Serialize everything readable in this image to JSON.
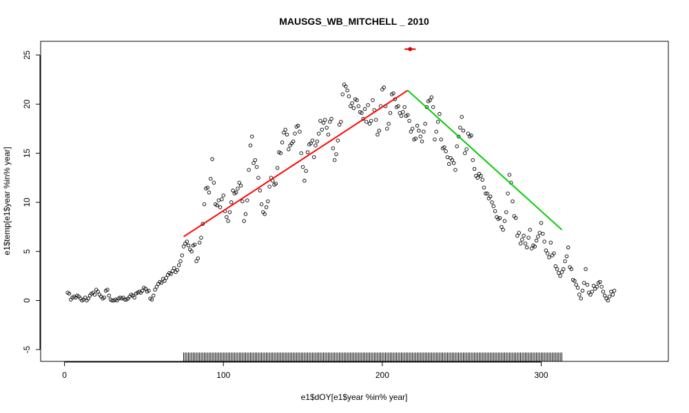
{
  "chart_data": {
    "type": "scatter",
    "title": "MAUSGS_WB_MITCHELL _ 2010",
    "xlabel": "e1$dOY[e1$year %in% year]",
    "ylabel": "e1$temp[e1$year %in% year]",
    "xlim": [
      -15,
      380
    ],
    "ylim": [
      -6.2,
      26.4
    ],
    "x_ticks": [
      0,
      100,
      200,
      300
    ],
    "y_ticks": [
      -5,
      0,
      5,
      10,
      15,
      20,
      25
    ],
    "grid": false,
    "legend": "none",
    "scatter_color": "#000000",
    "scatter_points": [
      [
        2,
        0.8
      ],
      [
        3,
        0.7
      ],
      [
        4,
        0.1
      ],
      [
        5,
        0.3
      ],
      [
        6,
        0.4
      ],
      [
        7,
        0.3
      ],
      [
        8,
        0.5
      ],
      [
        9,
        0.4
      ],
      [
        10,
        0.2
      ],
      [
        11,
        0.0
      ],
      [
        12,
        0.1
      ],
      [
        13,
        0.3
      ],
      [
        14,
        0.0
      ],
      [
        15,
        0.2
      ],
      [
        16,
        0.5
      ],
      [
        17,
        0.7
      ],
      [
        18,
        0.8
      ],
      [
        19,
        0.6
      ],
      [
        20,
        1.1
      ],
      [
        21,
        0.9
      ],
      [
        22,
        0.6
      ],
      [
        23,
        0.4
      ],
      [
        24,
        0.2
      ],
      [
        25,
        0.3
      ],
      [
        26,
        1.0
      ],
      [
        27,
        1.1
      ],
      [
        28,
        0.5
      ],
      [
        29,
        0.1
      ],
      [
        30,
        0.0
      ],
      [
        31,
        0.0
      ],
      [
        32,
        0.1
      ],
      [
        33,
        0.0
      ],
      [
        34,
        0.2
      ],
      [
        35,
        0.3
      ],
      [
        36,
        0.2
      ],
      [
        37,
        0.3
      ],
      [
        38,
        0.1
      ],
      [
        39,
        0.1
      ],
      [
        40,
        0.2
      ],
      [
        41,
        0.4
      ],
      [
        42,
        0.6
      ],
      [
        43,
        0.5
      ],
      [
        44,
        0.3
      ],
      [
        45,
        0.7
      ],
      [
        46,
        0.8
      ],
      [
        47,
        0.9
      ],
      [
        48,
        0.8
      ],
      [
        49,
        1.0
      ],
      [
        50,
        1.3
      ],
      [
        51,
        1.2
      ],
      [
        52,
        0.9
      ],
      [
        53,
        1.0
      ],
      [
        54,
        0.2
      ],
      [
        55,
        0.1
      ],
      [
        56,
        0.5
      ],
      [
        57,
        1.1
      ],
      [
        58,
        1.4
      ],
      [
        59,
        1.7
      ],
      [
        60,
        1.9
      ],
      [
        61,
        1.8
      ],
      [
        62,
        2.2
      ],
      [
        63,
        2.0
      ],
      [
        64,
        2.3
      ],
      [
        65,
        2.6
      ],
      [
        66,
        2.8
      ],
      [
        67,
        2.7
      ],
      [
        68,
        3.0
      ],
      [
        69,
        3.3
      ],
      [
        70,
        2.9
      ],
      [
        71,
        3.1
      ],
      [
        72,
        3.6
      ],
      [
        73,
        4.0
      ],
      [
        74,
        4.6
      ],
      [
        75,
        5.5
      ],
      [
        76,
        5.8
      ],
      [
        77,
        6.0
      ],
      [
        78,
        5.6
      ],
      [
        79,
        5.2
      ],
      [
        80,
        5.0
      ],
      [
        81,
        5.6
      ],
      [
        82,
        5.7
      ],
      [
        83,
        4.0
      ],
      [
        84,
        4.3
      ],
      [
        85,
        5.9
      ],
      [
        86,
        6.4
      ],
      [
        87,
        7.8
      ],
      [
        88,
        9.8
      ],
      [
        89,
        11.4
      ],
      [
        90,
        11.5
      ],
      [
        91,
        11.0
      ],
      [
        92,
        12.4
      ],
      [
        93,
        14.4
      ],
      [
        94,
        12.0
      ],
      [
        95,
        9.8
      ],
      [
        96,
        9.7
      ],
      [
        97,
        10.2
      ],
      [
        98,
        9.5
      ],
      [
        99,
        10.3
      ],
      [
        100,
        10.7
      ],
      [
        101,
        9.1
      ],
      [
        102,
        8.5
      ],
      [
        103,
        8.1
      ],
      [
        104,
        9.0
      ],
      [
        105,
        10.0
      ],
      [
        106,
        11.2
      ],
      [
        107,
        10.9
      ],
      [
        108,
        11.0
      ],
      [
        109,
        11.4
      ],
      [
        110,
        12.0
      ],
      [
        111,
        11.7
      ],
      [
        112,
        10.1
      ],
      [
        113,
        8.1
      ],
      [
        114,
        8.8
      ],
      [
        115,
        10.2
      ],
      [
        116,
        13.3
      ],
      [
        117,
        15.8
      ],
      [
        118,
        16.7
      ],
      [
        119,
        14.0
      ],
      [
        120,
        14.3
      ],
      [
        121,
        13.6
      ],
      [
        122,
        12.5
      ],
      [
        123,
        11.2
      ],
      [
        124,
        9.8
      ],
      [
        125,
        9.0
      ],
      [
        126,
        8.8
      ],
      [
        127,
        9.5
      ],
      [
        128,
        10.1
      ],
      [
        129,
        11.6
      ],
      [
        130,
        12.5
      ],
      [
        131,
        12.2
      ],
      [
        132,
        11.8
      ],
      [
        133,
        11.9
      ],
      [
        134,
        13.5
      ],
      [
        135,
        15.1
      ],
      [
        136,
        15.0
      ],
      [
        137,
        16.1
      ],
      [
        138,
        17.1
      ],
      [
        139,
        17.4
      ],
      [
        140,
        16.9
      ],
      [
        141,
        15.4
      ],
      [
        142,
        15.8
      ],
      [
        143,
        16.0
      ],
      [
        144,
        16.2
      ],
      [
        145,
        17.0
      ],
      [
        146,
        17.7
      ],
      [
        147,
        17.8
      ],
      [
        148,
        17.2
      ],
      [
        149,
        15.0
      ],
      [
        150,
        13.6
      ],
      [
        151,
        12.2
      ],
      [
        152,
        13.2
      ],
      [
        153,
        15.1
      ],
      [
        154,
        15.9
      ],
      [
        155,
        16.0
      ],
      [
        156,
        16.3
      ],
      [
        157,
        14.6
      ],
      [
        158,
        15.8
      ],
      [
        159,
        16.2
      ],
      [
        160,
        17.0
      ],
      [
        161,
        18.3
      ],
      [
        162,
        17.4
      ],
      [
        163,
        18.1
      ],
      [
        164,
        18.4
      ],
      [
        165,
        17.6
      ],
      [
        166,
        16.9
      ],
      [
        167,
        18.2
      ],
      [
        168,
        18.5
      ],
      [
        169,
        15.5
      ],
      [
        170,
        14.3
      ],
      [
        171,
        14.9
      ],
      [
        172,
        16.3
      ],
      [
        173,
        17.9
      ],
      [
        174,
        18.2
      ],
      [
        175,
        21.0
      ],
      [
        176,
        22.0
      ],
      [
        177,
        21.8
      ],
      [
        178,
        21.4
      ],
      [
        179,
        20.8
      ],
      [
        180,
        19.8
      ],
      [
        181,
        20.1
      ],
      [
        182,
        19.6
      ],
      [
        183,
        20.5
      ],
      [
        184,
        20.4
      ],
      [
        185,
        19.8
      ],
      [
        186,
        19.2
      ],
      [
        187,
        19.1
      ],
      [
        188,
        18.5
      ],
      [
        189,
        19.5
      ],
      [
        190,
        18.2
      ],
      [
        191,
        19.9
      ],
      [
        192,
        18.0
      ],
      [
        193,
        18.3
      ],
      [
        194,
        20.4
      ],
      [
        195,
        19.4
      ],
      [
        196,
        18.4
      ],
      [
        197,
        16.9
      ],
      [
        198,
        17.3
      ],
      [
        199,
        19.8
      ],
      [
        200,
        21.5
      ],
      [
        201,
        21.7
      ],
      [
        202,
        19.8
      ],
      [
        203,
        17.5
      ],
      [
        204,
        18.0
      ],
      [
        205,
        19.1
      ],
      [
        206,
        21.0
      ],
      [
        207,
        21.1
      ],
      [
        208,
        20.5
      ],
      [
        209,
        19.7
      ],
      [
        210,
        19.8
      ],
      [
        211,
        19.1
      ],
      [
        212,
        18.8
      ],
      [
        213,
        19.2
      ],
      [
        214,
        19.7
      ],
      [
        215,
        18.8
      ],
      [
        216,
        18.9
      ],
      [
        217,
        18.3
      ],
      [
        218,
        17.2
      ],
      [
        219,
        17.5
      ],
      [
        220,
        16.4
      ],
      [
        221,
        16.5
      ],
      [
        222,
        17.8
      ],
      [
        223,
        17.3
      ],
      [
        224,
        16.7
      ],
      [
        225,
        16.2
      ],
      [
        226,
        17.2
      ],
      [
        227,
        18.0
      ],
      [
        228,
        19.7
      ],
      [
        229,
        20.3
      ],
      [
        230,
        20.4
      ],
      [
        231,
        20.7
      ],
      [
        232,
        19.7
      ],
      [
        233,
        16.4
      ],
      [
        234,
        17.2
      ],
      [
        235,
        18.2
      ],
      [
        236,
        19.0
      ],
      [
        237,
        16.4
      ],
      [
        238,
        15.5
      ],
      [
        239,
        15.6
      ],
      [
        240,
        15.2
      ],
      [
        241,
        14.6
      ],
      [
        242,
        13.9
      ],
      [
        243,
        14.5
      ],
      [
        244,
        14.3
      ],
      [
        245,
        14.0
      ],
      [
        246,
        13.3
      ],
      [
        247,
        15.7
      ],
      [
        248,
        16.7
      ],
      [
        249,
        17.6
      ],
      [
        250,
        18.7
      ],
      [
        251,
        17.3
      ],
      [
        252,
        15.0
      ],
      [
        253,
        15.4
      ],
      [
        254,
        17.0
      ],
      [
        255,
        16.7
      ],
      [
        256,
        16.8
      ],
      [
        257,
        14.3
      ],
      [
        258,
        13.4
      ],
      [
        259,
        12.7
      ],
      [
        260,
        12.5
      ],
      [
        261,
        12.9
      ],
      [
        262,
        12.7
      ],
      [
        263,
        12.3
      ],
      [
        264,
        11.5
      ],
      [
        265,
        10.9
      ],
      [
        266,
        10.9
      ],
      [
        267,
        10.4
      ],
      [
        268,
        10.6
      ],
      [
        269,
        10.0
      ],
      [
        270,
        9.6
      ],
      [
        271,
        9.1
      ],
      [
        272,
        8.5
      ],
      [
        273,
        8.3
      ],
      [
        274,
        8.4
      ],
      [
        275,
        7.5
      ],
      [
        276,
        7.2
      ],
      [
        277,
        8.1
      ],
      [
        278,
        9.0
      ],
      [
        279,
        10.9
      ],
      [
        280,
        12.8
      ],
      [
        281,
        12.0
      ],
      [
        282,
        10.1
      ],
      [
        283,
        8.6
      ],
      [
        284,
        8.4
      ],
      [
        285,
        6.6
      ],
      [
        286,
        6.9
      ],
      [
        287,
        5.8
      ],
      [
        288,
        6.2
      ],
      [
        289,
        6.6
      ],
      [
        290,
        5.8
      ],
      [
        291,
        5.4
      ],
      [
        292,
        6.4
      ],
      [
        293,
        7.2
      ],
      [
        294,
        5.3
      ],
      [
        295,
        5.6
      ],
      [
        296,
        5.5
      ],
      [
        297,
        6.1
      ],
      [
        298,
        6.5
      ],
      [
        299,
        6.9
      ],
      [
        300,
        7.9
      ],
      [
        301,
        6.8
      ],
      [
        302,
        6.0
      ],
      [
        303,
        5.1
      ],
      [
        304,
        4.8
      ],
      [
        305,
        4.4
      ],
      [
        306,
        5.9
      ],
      [
        307,
        4.6
      ],
      [
        308,
        4.8
      ],
      [
        309,
        3.5
      ],
      [
        310,
        3.2
      ],
      [
        311,
        2.8
      ],
      [
        312,
        2.5
      ],
      [
        313,
        2.9
      ],
      [
        314,
        3.2
      ],
      [
        315,
        4.0
      ],
      [
        316,
        4.5
      ],
      [
        317,
        5.4
      ],
      [
        318,
        3.4
      ],
      [
        319,
        3.2
      ],
      [
        320,
        2.1
      ],
      [
        321,
        2.0
      ],
      [
        322,
        1.6
      ],
      [
        323,
        1.3
      ],
      [
        324,
        0.6
      ],
      [
        325,
        0.2
      ],
      [
        326,
        1.0
      ],
      [
        327,
        1.8
      ],
      [
        328,
        3.2
      ],
      [
        329,
        1.6
      ],
      [
        330,
        0.8
      ],
      [
        331,
        0.6
      ],
      [
        332,
        0.9
      ],
      [
        333,
        1.5
      ],
      [
        334,
        1.2
      ],
      [
        335,
        1.4
      ],
      [
        336,
        1.8
      ],
      [
        337,
        1.9
      ],
      [
        338,
        1.4
      ],
      [
        339,
        0.9
      ],
      [
        340,
        0.5
      ],
      [
        341,
        0.2
      ],
      [
        342,
        0.0
      ],
      [
        343,
        0.4
      ],
      [
        344,
        0.9
      ],
      [
        345,
        0.6
      ],
      [
        346,
        1.0
      ]
    ],
    "fit_lines": [
      {
        "color": "#ff0000",
        "x": [
          75,
          216
        ],
        "y": [
          6.5,
          21.4
        ]
      },
      {
        "color": "#00cc00",
        "x": [
          216,
          313
        ],
        "y": [
          21.4,
          7.2
        ]
      }
    ],
    "peak_marker": {
      "color": "#dd0000",
      "x": 217.5,
      "y": 25.6,
      "x_err": [
        214,
        221
      ]
    },
    "rug": {
      "x_start": 75,
      "x_end": 313,
      "step": 1,
      "y_top": -5.3,
      "y_bottom": -6.2
    }
  }
}
